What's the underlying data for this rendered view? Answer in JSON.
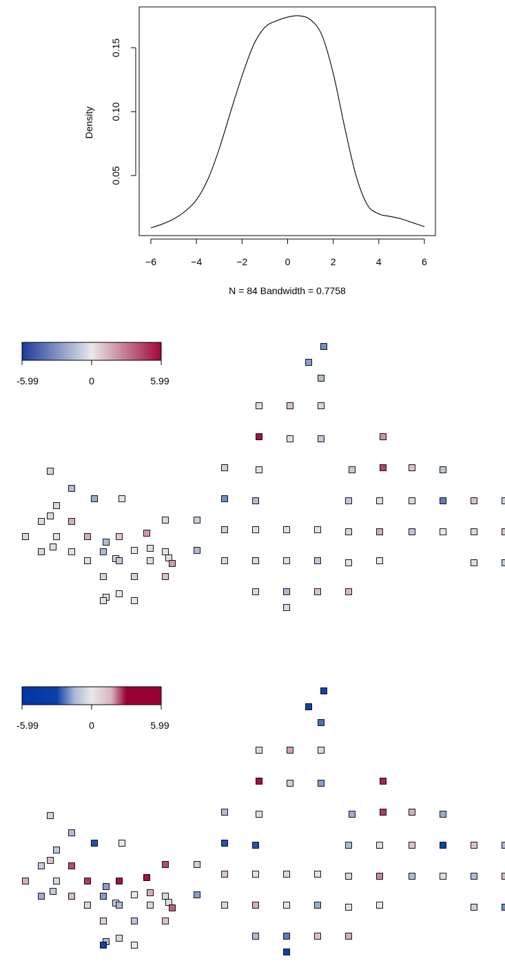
{
  "density_plot": {
    "ylabel": "Density",
    "xlabel": "N = 84   Bandwidth = 0.7758"
  },
  "legend": {
    "min_label": "-5.99",
    "mid_label": "0",
    "max_label": "5.99"
  },
  "colors": {
    "low": "#0033a0",
    "mid": "#e8e8e8",
    "high": "#990033"
  },
  "chart_data": [
    {
      "type": "line",
      "x": [
        -6,
        -5.5,
        -5,
        -4.5,
        -4,
        -3.5,
        -3,
        -2.5,
        -2,
        -1.5,
        -1,
        -0.5,
        0,
        0.5,
        1,
        1.5,
        2,
        2.5,
        3,
        3.5,
        4,
        4.5,
        5,
        5.5,
        6
      ],
      "y": [
        0.009,
        0.012,
        0.016,
        0.022,
        0.031,
        0.047,
        0.071,
        0.1,
        0.128,
        0.152,
        0.166,
        0.171,
        0.174,
        0.175,
        0.172,
        0.16,
        0.13,
        0.088,
        0.05,
        0.027,
        0.02,
        0.018,
        0.016,
        0.013,
        0.01
      ],
      "ylabel": "Density",
      "xlabel": "N = 84   Bandwidth = 0.7758",
      "xlim": [
        -6,
        6
      ],
      "ylim": [
        0.003,
        0.182
      ],
      "xticks": [
        -6,
        -4,
        -2,
        0,
        2,
        4,
        6
      ],
      "xtick_labels": [
        "−6",
        "−4",
        "−2",
        "0",
        "2",
        "4",
        "6"
      ],
      "yticks": [
        0.05,
        0.1,
        0.15
      ],
      "ytick_labels": [
        "0.05",
        "0.10",
        "0.15"
      ]
    },
    {
      "type": "heatmap",
      "legend_range": [
        -5.99,
        5.99
      ],
      "legend_ticks": [
        -5.99,
        0,
        5.99
      ],
      "values": [
        -3.0,
        -2.5,
        -1.5,
        0.3,
        1.0,
        0.5,
        5.5,
        0.2,
        -1.0,
        2.2,
        -0.8,
        0.3,
        -1.0,
        4.2,
        1.0,
        -1.2,
        0.6,
        -1.5,
        -2.0,
        -0.2,
        -3.0,
        -1.5,
        -1.0,
        0.3,
        0.5,
        -3.5,
        1.0,
        -0.5,
        0.5,
        -0.5,
        1.5,
        0.5,
        -0.8,
        0.5,
        0.2,
        1.5,
        0.8,
        2.0,
        0.8,
        0.2,
        -0.2,
        0.2,
        0.5,
        1.5,
        -1.2,
        0.0,
        -0.5,
        1.0,
        -1.5,
        -0.5,
        -0.3,
        0.2,
        -1.5,
        0.0,
        0.3,
        -0.2,
        -1.5,
        -0.5,
        0.3,
        0.3,
        -1.0,
        0.3,
        2.0,
        0.5,
        0.5,
        -0.2,
        -1.0,
        0.2,
        0.0,
        -0.4,
        -1.0,
        0.6,
        -0.6,
        1.0,
        -0.5,
        -1.5,
        1.0,
        1.2,
        0.0,
        -0.4,
        -0.4,
        -0.2,
        0.0,
        -0.8
      ]
    },
    {
      "type": "heatmap",
      "legend_range": [
        -5.99,
        5.99
      ],
      "legend_ticks": [
        -5.99,
        0,
        5.99
      ],
      "values": [
        -5.5,
        -5.5,
        -4.0,
        0.5,
        1.8,
        0.5,
        5.5,
        -0.8,
        -2.5,
        5.0,
        -1.5,
        0.3,
        -2.0,
        4.5,
        1.5,
        -2.0,
        0.6,
        -1.5,
        -5.0,
        0.0,
        -5.0,
        -5.0,
        -1.5,
        0.3,
        1.0,
        -5.5,
        1.0,
        -1.0,
        1.0,
        -1.0,
        4.0,
        4.0,
        -0.8,
        1.5,
        -0.5,
        4.5,
        5.5,
        5.5,
        1.0,
        0.2,
        -0.5,
        0.2,
        0.5,
        2.5,
        -1.5,
        -0.3,
        -1.5,
        1.2,
        -2.5,
        -2.0,
        -1.0,
        1.2,
        -2.5,
        0.0,
        1.5,
        -0.5,
        -2.5,
        -1.0,
        0.3,
        0.5,
        -1.5,
        0.5,
        3.5,
        0.5,
        1.5,
        -0.2,
        -2.0,
        0.2,
        0.0,
        -0.8,
        -3.0,
        0.6,
        -1.2,
        1.0,
        -1.5,
        -3.5,
        1.0,
        1.5,
        -0.5,
        -1.5,
        -5.5,
        -5.5,
        0.0,
        -1.5
      ]
    }
  ]
}
